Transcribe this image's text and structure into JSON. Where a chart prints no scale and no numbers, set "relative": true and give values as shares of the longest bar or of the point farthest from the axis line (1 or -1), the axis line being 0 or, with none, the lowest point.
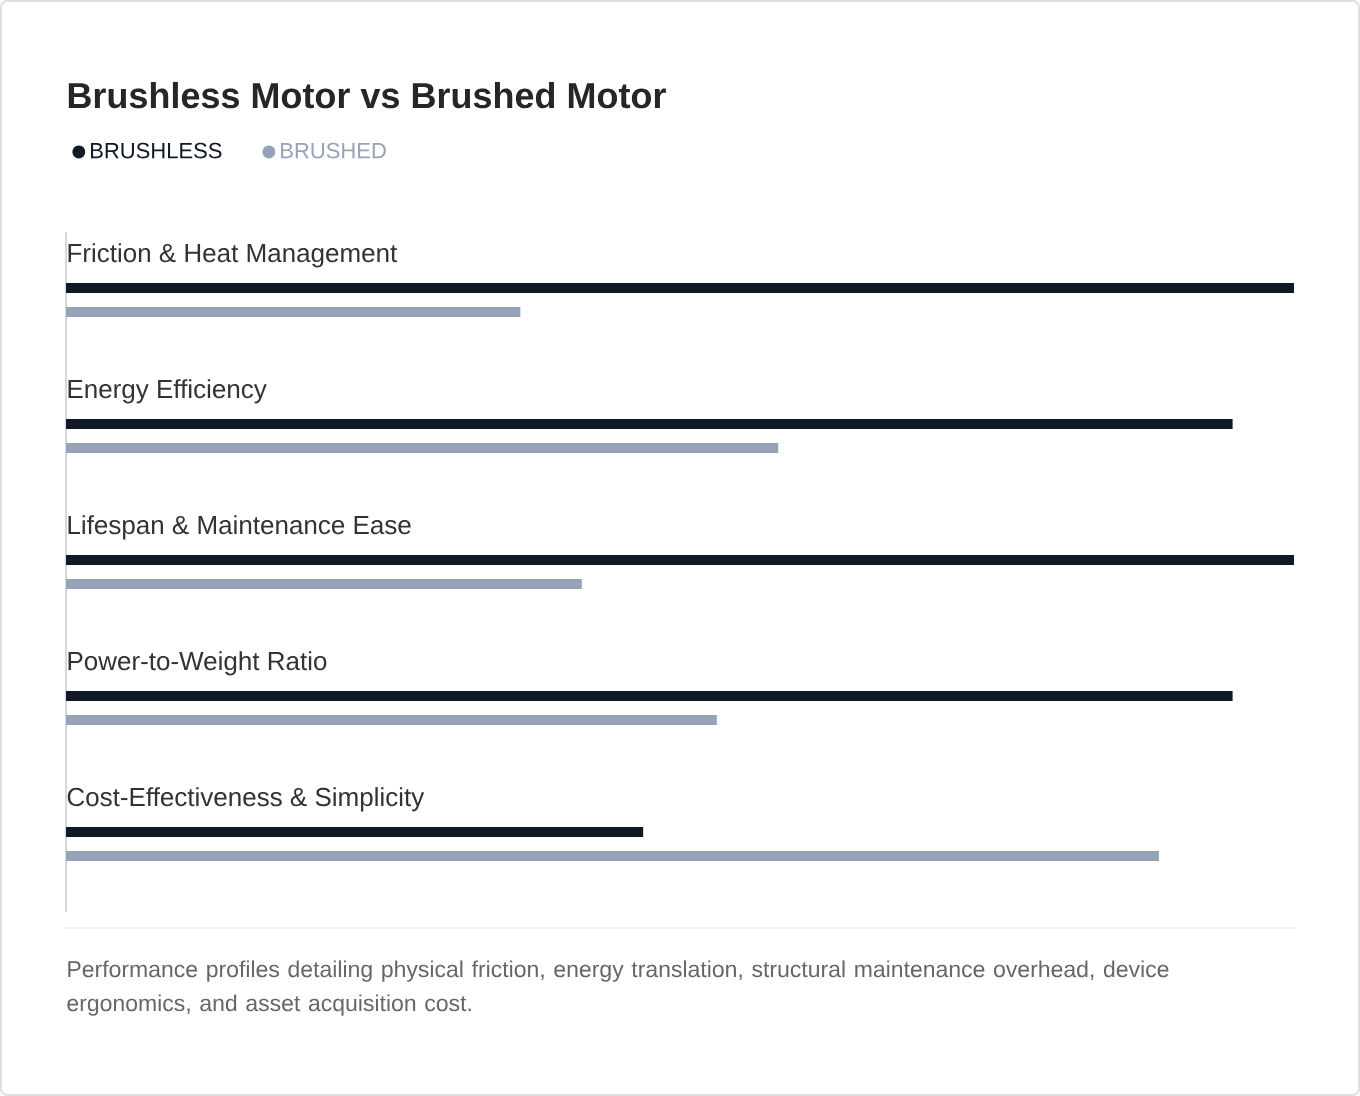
{
  "chart_data": {
    "type": "bar",
    "orientation": "horizontal",
    "relative": true,
    "title": "Brushless Motor vs Brushed Motor",
    "categories": [
      "Friction & Heat Management",
      "Energy Efficiency",
      "Lifespan & Maintenance Ease",
      "Power-to-Weight Ratio",
      "Cost-Effectiveness & Simplicity"
    ],
    "series": [
      {
        "name": "BRUSHLESS",
        "color": "#111827",
        "values": [
          1,
          0.95,
          1,
          0.95,
          0.47
        ]
      },
      {
        "name": "BRUSHED",
        "color": "#94a3b8",
        "values": [
          0.37,
          0.58,
          0.42,
          0.53,
          0.89
        ]
      }
    ],
    "legend": "top left",
    "annotations": [
      "Performance profiles detailing physical friction, energy translation, structural maintenance overhead, device ergonomics, and asset acquisition cost."
    ]
  }
}
